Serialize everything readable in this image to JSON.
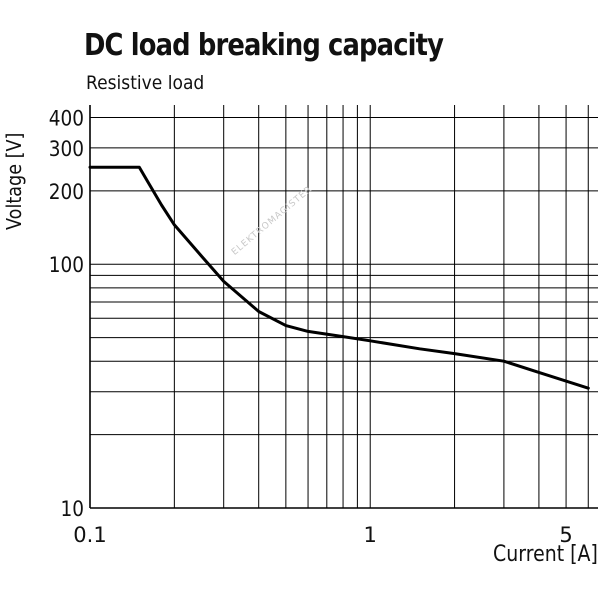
{
  "chart_data": {
    "type": "line",
    "title": "DC load breaking capacity",
    "subtitle": "Resistive load",
    "xlabel": "Current [A]",
    "ylabel": "Voltage [V]",
    "x_scale": "log",
    "y_scale": "log",
    "xlim": [
      0.1,
      6.5
    ],
    "ylim": [
      10,
      450
    ],
    "grid": true,
    "x_tick_labels": [
      {
        "value": 0.1,
        "label": "0.1"
      },
      {
        "value": 1,
        "label": "1"
      },
      {
        "value": 5,
        "label": "5"
      }
    ],
    "y_tick_labels": [
      {
        "value": 10,
        "label": "10"
      },
      {
        "value": 100,
        "label": "100"
      },
      {
        "value": 200,
        "label": "200"
      },
      {
        "value": 300,
        "label": "300"
      },
      {
        "value": 400,
        "label": "400"
      }
    ],
    "x_gridlines": [
      0.2,
      0.3,
      0.4,
      0.5,
      0.6,
      0.7,
      0.8,
      0.9,
      1,
      2,
      3,
      4,
      5,
      6
    ],
    "y_gridlines": [
      20,
      30,
      40,
      50,
      60,
      70,
      80,
      90,
      100,
      200,
      300,
      400
    ],
    "series": [
      {
        "name": "",
        "color": "#000000",
        "x": [
          0.1,
          0.15,
          0.16,
          0.18,
          0.2,
          0.25,
          0.3,
          0.4,
          0.5,
          0.6,
          0.8,
          1.0,
          1.5,
          2.0,
          3.0,
          4.0,
          6.0
        ],
        "y": [
          250,
          250,
          220,
          175,
          145,
          108,
          85,
          64,
          56,
          53,
          50.5,
          48.5,
          45,
          43,
          40,
          36,
          31
        ]
      }
    ]
  },
  "watermark": "ELEKTROMAGISTER",
  "colors": {
    "line": "#000000",
    "grid": "#000000",
    "background": "#ffffff"
  }
}
